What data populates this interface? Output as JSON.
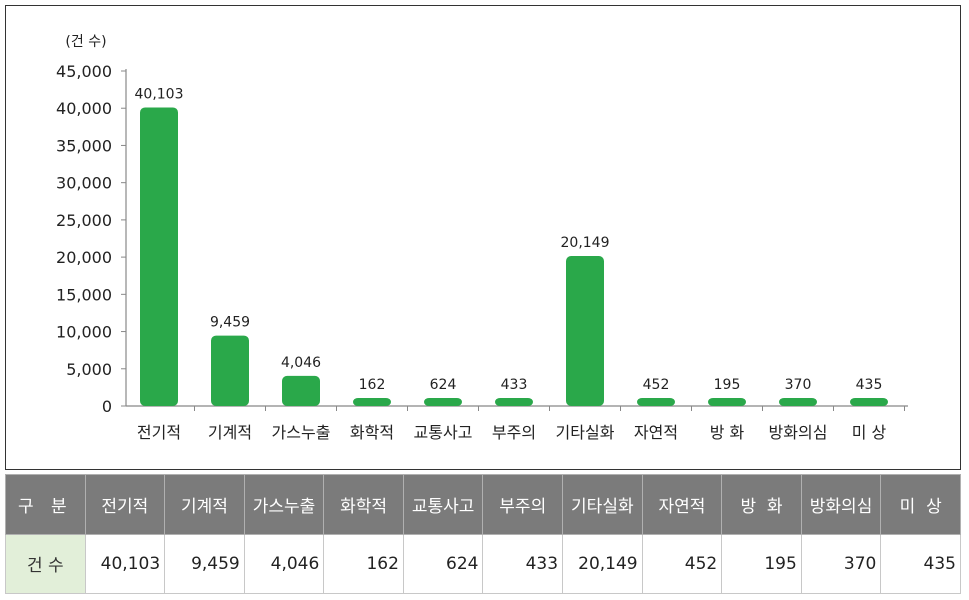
{
  "chart_data": {
    "type": "bar",
    "unit_label": "(건 수)",
    "categories": [
      "전기적",
      "기계적",
      "가스누출",
      "화학적",
      "교통사고",
      "부주의",
      "기타실화",
      "자연적",
      "방 화",
      "방화의심",
      "미 상"
    ],
    "values": [
      40103,
      9459,
      4046,
      162,
      624,
      433,
      20149,
      452,
      195,
      370,
      435
    ],
    "data_labels": [
      "40,103",
      "9,459",
      "4,046",
      "162",
      "624",
      "433",
      "20,149",
      "452",
      "195",
      "370",
      "435"
    ],
    "yticks": [
      "0",
      "5,000",
      "10,000",
      "15,000",
      "20,000",
      "25,000",
      "30,000",
      "35,000",
      "40,000",
      "45,000"
    ],
    "ylim": [
      0,
      45000
    ],
    "bar_color": "#2aa84a",
    "grid": false,
    "legend": "none"
  },
  "table": {
    "header_label": "구 분",
    "row_label": "건 수",
    "columns": [
      "전기적",
      "기계적",
      "가스누출",
      "화학적",
      "교통사고",
      "부주의",
      "기타실화",
      "자연적",
      "방  화",
      "방화의심",
      "미  상"
    ],
    "values": [
      "40,103",
      "9,459",
      "4,046",
      "162",
      "624",
      "433",
      "20,149",
      "452",
      "195",
      "370",
      "435"
    ]
  }
}
